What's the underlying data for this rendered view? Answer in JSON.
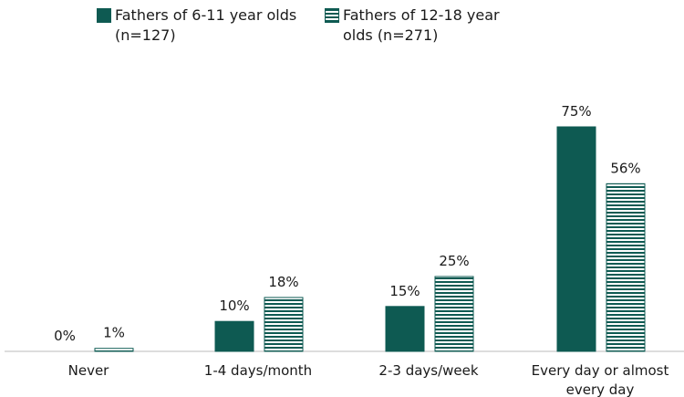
{
  "chart_data": {
    "type": "bar",
    "categories": [
      "Never",
      "1-4 days/month",
      "2-3 days/week",
      "Every day or almost every day"
    ],
    "series": [
      {
        "name": "Fathers of 6-11 year olds (n=127)",
        "color": "#0e5a52",
        "values": [
          0,
          10,
          15,
          75
        ],
        "value_labels": [
          "0%",
          "10%",
          "15%",
          "75%"
        ]
      },
      {
        "name": "Fathers of 12-18 year olds (n=271)",
        "color": "#0e5a52",
        "pattern": "horizontal-stripes",
        "values": [
          1,
          18,
          25,
          56
        ],
        "value_labels": [
          "1%",
          "18%",
          "25%",
          "56%"
        ]
      }
    ]
  }
}
